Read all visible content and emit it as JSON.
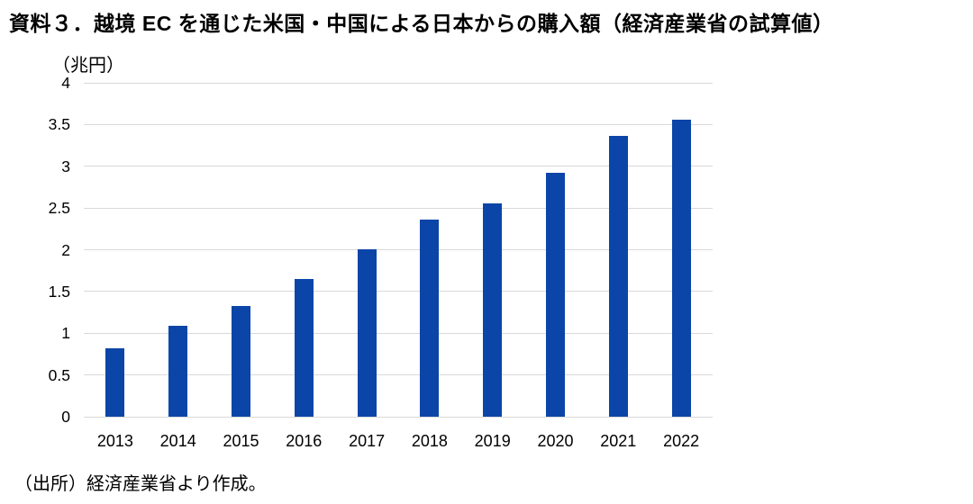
{
  "header": {
    "title": "資料３．越境 EC を通じた米国・中国による日本からの購入額（経済産業省の試算値）"
  },
  "axis": {
    "unit_label": "（兆円）"
  },
  "footer": {
    "source": "（出所）経済産業省より作成。"
  },
  "chart_data": {
    "type": "bar",
    "title": "資料３．越境 EC を通じた米国・中国による日本からの購入額（経済産業省の試算値）",
    "categories": [
      "2013",
      "2014",
      "2015",
      "2016",
      "2017",
      "2018",
      "2019",
      "2020",
      "2021",
      "2022"
    ],
    "values": [
      0.82,
      1.09,
      1.33,
      1.65,
      2.01,
      2.36,
      2.56,
      2.92,
      3.36,
      3.56
    ],
    "xlabel": "",
    "ylabel": "（兆円）",
    "ylim": [
      0,
      4
    ],
    "yticks": [
      0,
      0.5,
      1,
      1.5,
      2,
      2.5,
      3,
      3.5,
      4
    ],
    "ytick_labels": [
      "0",
      "0.5",
      "1",
      "1.5",
      "2",
      "2.5",
      "3",
      "3.5",
      "4"
    ],
    "grid": true,
    "legend": false,
    "bar_color": "#0B45A8",
    "gridline_color": "#D9D9D9",
    "text_color": "#000000",
    "source": "（出所）経済産業省より作成。"
  }
}
